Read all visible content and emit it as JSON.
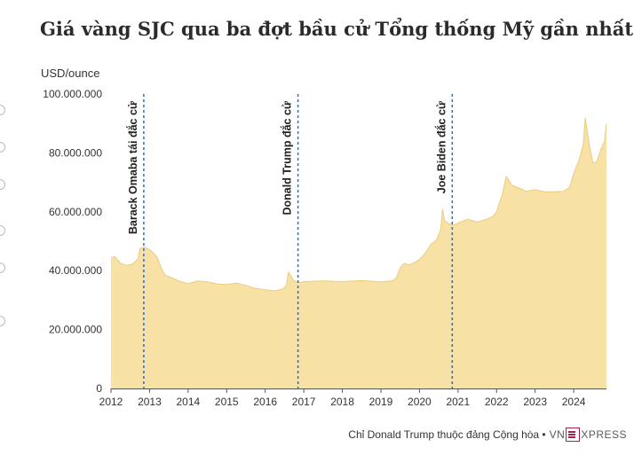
{
  "title": "Giá vàng SJC qua ba đợt bầu cử Tổng thống Mỹ gần nhất",
  "footer": {
    "note": "Chỉ Donald Trump thuộc đảng Cộng hòa •",
    "logo_text_left": "VN",
    "logo_text_right": "XPRESS"
  },
  "colors": {
    "area_fill": "#f7e1a5",
    "area_line": "#eccd7f",
    "marker_line": "#2a6fc4",
    "logo_accent": "#9f224e"
  },
  "chart_data": {
    "type": "area",
    "ylabel": "USD/ounce",
    "ylim": [
      0,
      100000000
    ],
    "xlim": [
      2012,
      2024.85
    ],
    "y_ticks": [
      "0",
      "20.000.000",
      "40.000.000",
      "60.000.000",
      "80.000.000",
      "100.000.000"
    ],
    "y_tick_values": [
      0,
      20000000,
      40000000,
      60000000,
      80000000,
      100000000
    ],
    "x_ticks": [
      "2012",
      "2013",
      "2014",
      "2015",
      "2016",
      "2017",
      "2018",
      "2019",
      "2020",
      "2021",
      "2022",
      "2023",
      "2024"
    ],
    "x_tick_values": [
      2012,
      2013,
      2014,
      2015,
      2016,
      2017,
      2018,
      2019,
      2020,
      2021,
      2022,
      2023,
      2024
    ],
    "grid": false,
    "series": [
      {
        "x": [
          2012.0,
          2012.1,
          2012.25,
          2012.4,
          2012.55,
          2012.7,
          2012.75,
          2012.85,
          2013.0,
          2013.1,
          2013.2,
          2013.3,
          2013.4,
          2013.5,
          2013.6,
          2013.75,
          2013.9,
          2014.0,
          2014.25,
          2014.5,
          2014.75,
          2015.0,
          2015.25,
          2015.5,
          2015.75,
          2016.0,
          2016.25,
          2016.45,
          2016.55,
          2016.6,
          2016.75,
          2016.9,
          2017.0,
          2017.5,
          2018.0,
          2018.5,
          2019.0,
          2019.3,
          2019.4,
          2019.5,
          2019.6,
          2019.75,
          2019.9,
          2020.0,
          2020.15,
          2020.3,
          2020.45,
          2020.55,
          2020.6,
          2020.65,
          2020.75,
          2020.9,
          2021.0,
          2021.25,
          2021.5,
          2021.75,
          2021.9,
          2022.0,
          2022.15,
          2022.25,
          2022.4,
          2022.6,
          2022.75,
          2023.0,
          2023.25,
          2023.5,
          2023.75,
          2023.9,
          2024.0,
          2024.15,
          2024.25,
          2024.3,
          2024.4,
          2024.5,
          2024.6,
          2024.7,
          2024.8,
          2024.85
        ],
        "y": [
          44500000,
          44800000,
          42500000,
          41800000,
          42200000,
          44000000,
          47500000,
          48000000,
          47200000,
          46000000,
          44500000,
          41000000,
          38500000,
          38000000,
          37500000,
          36500000,
          36000000,
          35600000,
          36500000,
          36200000,
          35500000,
          35300000,
          35800000,
          35000000,
          34000000,
          33500000,
          33200000,
          33800000,
          35000000,
          39500000,
          36500000,
          36000000,
          36300000,
          36500000,
          36300000,
          36700000,
          36200000,
          36500000,
          37500000,
          41000000,
          42500000,
          42000000,
          43000000,
          43800000,
          46000000,
          49000000,
          50500000,
          54000000,
          61000000,
          57000000,
          56000000,
          55500000,
          56200000,
          57500000,
          56500000,
          57500000,
          58500000,
          60000000,
          66000000,
          72000000,
          69000000,
          68000000,
          67000000,
          67500000,
          66800000,
          66800000,
          67000000,
          68500000,
          73000000,
          78000000,
          83000000,
          92000000,
          83000000,
          76500000,
          77000000,
          81000000,
          84000000,
          90000000
        ]
      }
    ],
    "annotations": [
      {
        "x": 2012.85,
        "label": "Barack Omaba tái đắc cử"
      },
      {
        "x": 2016.85,
        "label": "Donald Trump đắc cử"
      },
      {
        "x": 2020.85,
        "label": "Joe Biden đắc cử"
      }
    ]
  }
}
